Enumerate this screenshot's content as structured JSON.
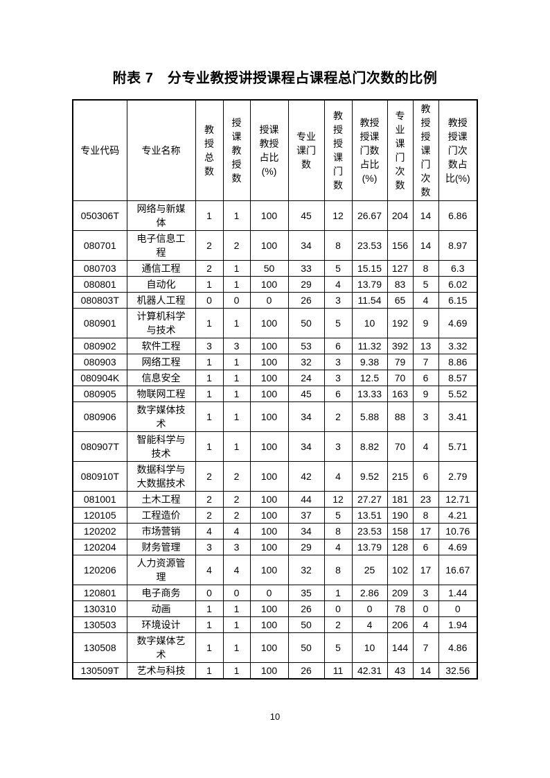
{
  "title": "附表 7　分专业教授讲授课程占课程总门次数的比例",
  "table": {
    "columns": [
      {
        "label": "专业代码"
      },
      {
        "label": "专业名称"
      },
      {
        "label": "教\n授\n总\n数"
      },
      {
        "label": "授\n课\n教\n授\n数"
      },
      {
        "label": "授课\n教授\n占比\n(%)"
      },
      {
        "label": "专业\n课门\n数"
      },
      {
        "label": "教\n授\n授\n课\n门\n数"
      },
      {
        "label": "教授\n授课\n门数\n占比\n(%)"
      },
      {
        "label": "专\n业\n课\n门\n次\n数"
      },
      {
        "label": "教\n授\n授\n课\n门\n次\n数"
      },
      {
        "label": "教授\n授课\n门次\n数占\n比(%)"
      }
    ],
    "rows": [
      [
        "050306T",
        "网络与新媒体",
        "1",
        "1",
        "100",
        "45",
        "12",
        "26.67",
        "204",
        "14",
        "6.86"
      ],
      [
        "080701",
        "电子信息工程",
        "2",
        "2",
        "100",
        "34",
        "8",
        "23.53",
        "156",
        "14",
        "8.97"
      ],
      [
        "080703",
        "通信工程",
        "2",
        "1",
        "50",
        "33",
        "5",
        "15.15",
        "127",
        "8",
        "6.3"
      ],
      [
        "080801",
        "自动化",
        "1",
        "1",
        "100",
        "29",
        "4",
        "13.79",
        "83",
        "5",
        "6.02"
      ],
      [
        "080803T",
        "机器人工程",
        "0",
        "0",
        "0",
        "26",
        "3",
        "11.54",
        "65",
        "4",
        "6.15"
      ],
      [
        "080901",
        "计算机科学与技术",
        "1",
        "1",
        "100",
        "50",
        "5",
        "10",
        "192",
        "9",
        "4.69"
      ],
      [
        "080902",
        "软件工程",
        "3",
        "3",
        "100",
        "53",
        "6",
        "11.32",
        "392",
        "13",
        "3.32"
      ],
      [
        "080903",
        "网络工程",
        "1",
        "1",
        "100",
        "32",
        "3",
        "9.38",
        "79",
        "7",
        "8.86"
      ],
      [
        "080904K",
        "信息安全",
        "1",
        "1",
        "100",
        "24",
        "3",
        "12.5",
        "70",
        "6",
        "8.57"
      ],
      [
        "080905",
        "物联网工程",
        "1",
        "1",
        "100",
        "45",
        "6",
        "13.33",
        "163",
        "9",
        "5.52"
      ],
      [
        "080906",
        "数字媒体技术",
        "1",
        "1",
        "100",
        "34",
        "2",
        "5.88",
        "88",
        "3",
        "3.41"
      ],
      [
        "080907T",
        "智能科学与技术",
        "1",
        "1",
        "100",
        "34",
        "3",
        "8.82",
        "70",
        "4",
        "5.71"
      ],
      [
        "080910T",
        "数据科学与大数据技术",
        "2",
        "2",
        "100",
        "42",
        "4",
        "9.52",
        "215",
        "6",
        "2.79"
      ],
      [
        "081001",
        "土木工程",
        "2",
        "2",
        "100",
        "44",
        "12",
        "27.27",
        "181",
        "23",
        "12.71"
      ],
      [
        "120105",
        "工程造价",
        "2",
        "2",
        "100",
        "37",
        "5",
        "13.51",
        "190",
        "8",
        "4.21"
      ],
      [
        "120202",
        "市场营销",
        "4",
        "4",
        "100",
        "34",
        "8",
        "23.53",
        "158",
        "17",
        "10.76"
      ],
      [
        "120204",
        "财务管理",
        "3",
        "3",
        "100",
        "29",
        "4",
        "13.79",
        "128",
        "6",
        "4.69"
      ],
      [
        "120206",
        "人力资源管理",
        "4",
        "4",
        "100",
        "32",
        "8",
        "25",
        "102",
        "17",
        "16.67"
      ],
      [
        "120801",
        "电子商务",
        "0",
        "0",
        "0",
        "35",
        "1",
        "2.86",
        "209",
        "3",
        "1.44"
      ],
      [
        "130310",
        "动画",
        "1",
        "1",
        "100",
        "26",
        "0",
        "0",
        "78",
        "0",
        "0"
      ],
      [
        "130503",
        "环境设计",
        "1",
        "1",
        "100",
        "50",
        "2",
        "4",
        "206",
        "4",
        "1.94"
      ],
      [
        "130508",
        "数字媒体艺术",
        "1",
        "1",
        "100",
        "50",
        "5",
        "10",
        "144",
        "7",
        "4.86"
      ],
      [
        "130509T",
        "艺术与科技",
        "1",
        "1",
        "100",
        "26",
        "11",
        "42.31",
        "43",
        "14",
        "32.56"
      ]
    ]
  },
  "footer": {
    "page_number": "10"
  }
}
